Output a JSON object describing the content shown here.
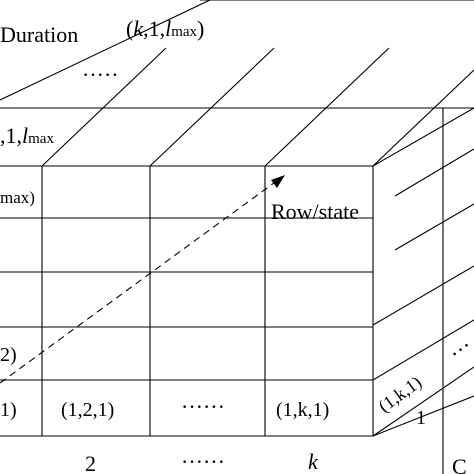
{
  "labels": {
    "duration": "Duration",
    "row_state": "Row/state",
    "ellipsis_depth": "·····",
    "ellipsis_front": "······",
    "ellipsis_axis": "······",
    "ellipsis_side": "···",
    "cell_1": "1)",
    "cell_2": "(1,2,1)",
    "cell_k": "(1,k,1)",
    "side_cell": "(1,k,1)",
    "left_lmax": "max)",
    "left_2": "2)",
    "side_1": "1",
    "corner_c": "C"
  },
  "top_labels": {
    "k1lmax": {
      "open": "(",
      "k": "k",
      "mid": ",1,",
      "l": "l",
      "sub": "max",
      "close": ")"
    },
    "one_lmax": {
      "pre": ",1,",
      "l": "l",
      "sub": "max"
    }
  },
  "axis_labels": {
    "two": "2",
    "k": "k"
  }
}
